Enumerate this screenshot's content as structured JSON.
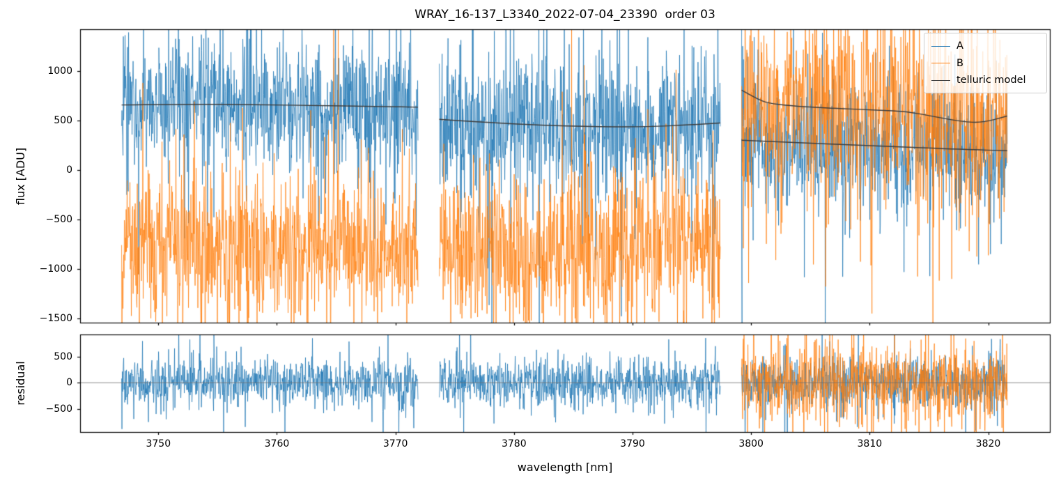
{
  "figure": {
    "title": "WRAY_16-137_L3340_2022-07-04_23390  order 03",
    "background": "#ffffff"
  },
  "legend": {
    "items": [
      {
        "label": "A",
        "color": "#1f77b4"
      },
      {
        "label": "B",
        "color": "#ff7f0e"
      },
      {
        "label": "telluric model",
        "color": "#3d3d3d"
      }
    ]
  },
  "chart_data": {
    "type": "line",
    "title": "WRAY_16-137_L3340_2022-07-04_23390  order 03",
    "xlabel": "wavelength [nm]",
    "xlim": [
      3743.4,
      3825.2
    ],
    "xticks": [
      3750,
      3760,
      3770,
      3780,
      3790,
      3800,
      3810,
      3820
    ],
    "grid": false,
    "legend_position": "upper right",
    "panels": [
      {
        "id": "flux",
        "ylabel": "flux [ADU]",
        "ylim": [
          -1540,
          1425
        ],
        "yticks": [
          1000,
          500,
          0,
          -500,
          -1000,
          -1500
        ]
      },
      {
        "id": "residual",
        "ylabel": "residual",
        "ylim": [
          -940,
          920
        ],
        "yticks": [
          500,
          0,
          -500
        ],
        "zero_line": true
      }
    ],
    "colors": {
      "A": "#1f77b4",
      "B": "#ff7f0e",
      "telluric_model": "#3d3d3d"
    },
    "series_draw_order": [
      "A",
      "B"
    ],
    "segments": [
      {
        "x_range": [
          3746.9,
          3771.9
        ],
        "telluric_models": {
          "A": [
            [
              3746.9,
              660
            ],
            [
              3752,
              668
            ],
            [
              3758,
              664
            ],
            [
              3764,
              652
            ],
            [
              3769,
              645
            ],
            [
              3771.9,
              637
            ]
          ]
        },
        "flux": {
          "A": {
            "mean_model": "A",
            "sigma": 300
          },
          "B": {
            "mean": -770,
            "sigma": 330
          }
        },
        "residual": {
          "A": {
            "mean": 0,
            "sigma": 205
          }
        }
      },
      {
        "x_range": [
          3773.7,
          3797.4
        ],
        "telluric_models": {
          "A": [
            [
              3773.7,
              515
            ],
            [
              3780,
              465
            ],
            [
              3786,
              442
            ],
            [
              3791,
              437
            ],
            [
              3795,
              460
            ],
            [
              3797.4,
              478
            ]
          ]
        },
        "flux": {
          "A": {
            "mean_model": "A",
            "sigma": 300
          },
          "B": {
            "mean": -790,
            "sigma": 330
          }
        },
        "residual": {
          "A": {
            "mean": 0,
            "sigma": 205
          }
        }
      },
      {
        "x_range": [
          3799.2,
          3821.6
        ],
        "telluric_models": {
          "B": [
            [
              3799.2,
              810
            ],
            [
              3800.5,
              722
            ],
            [
              3801.4,
              680
            ],
            [
              3803.2,
              652
            ],
            [
              3806,
              632
            ],
            [
              3810.7,
              607
            ],
            [
              3813.1,
              596
            ],
            [
              3815.5,
              540
            ],
            [
              3817.8,
              492
            ],
            [
              3819.5,
              480
            ],
            [
              3821.6,
              548
            ]
          ],
          "A": [
            [
              3799.2,
              303
            ],
            [
              3801.4,
              291
            ],
            [
              3810.7,
              245
            ],
            [
              3818,
              210
            ],
            [
              3821.6,
              198
            ]
          ]
        },
        "flux": {
          "A": {
            "mean_model": "A",
            "sigma": 280,
            "edge_spike": true
          },
          "B": {
            "mean_model": "B",
            "sigma": 430
          }
        },
        "residual": {
          "A": {
            "mean": 0,
            "sigma": 230
          },
          "B": {
            "mean": 0,
            "sigma": 345
          }
        }
      }
    ]
  }
}
